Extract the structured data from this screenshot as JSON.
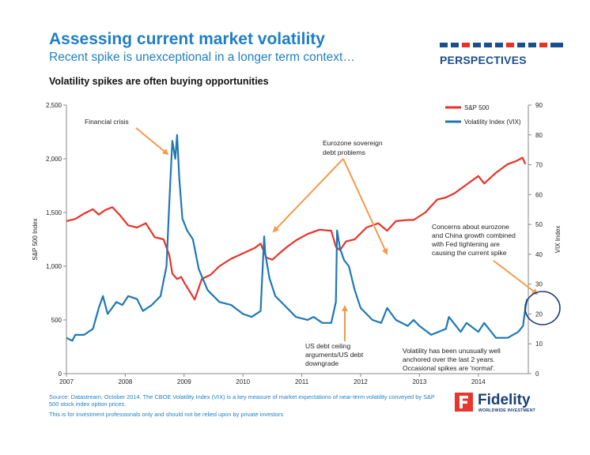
{
  "header": {
    "title": "Assessing current market volatility",
    "subtitle": "Recent spike is unexceptional in a longer term context…",
    "tag": "PERSPECTIVES",
    "chart_heading": "Volatility spikes are often buying opportunities"
  },
  "footer": {
    "source": "Source: Datastream, October 2014. The CBOE Volatility Index (VIX) is a key measure of market expectations of near-term volatility conveyed by S&P 500 stock index option prices.",
    "disclaimer": "This is for investment professionals only and should not be relied upon by private investors",
    "logo_name": "Fidelity",
    "logo_tag": "WORLDWIDE INVESTMENT"
  },
  "colors": {
    "sp500": "#e63329",
    "vix": "#1f78b4",
    "accent": "#1f7fc4",
    "arrow": "#f29b4c",
    "brand_red": "#e8352e",
    "brand_navy": "#1b3f73"
  },
  "chart_data": {
    "type": "line",
    "title": "Volatility spikes are often buying opportunities",
    "ylabel": "S&P 500 Index",
    "y2label": "VIX Index",
    "xlim": [
      2007.0,
      2014.85
    ],
    "ylim": [
      0,
      2500
    ],
    "y2lim": [
      0,
      90
    ],
    "x_ticks": [
      2007,
      2008,
      2009,
      2010,
      2011,
      2012,
      2013,
      2014
    ],
    "y_ticks": [
      0,
      500,
      1000,
      1500,
      2000,
      2500
    ],
    "y_tick_labels": [
      "0",
      "500",
      "1,000",
      "1,500",
      "2,000",
      "2,500"
    ],
    "y2_ticks": [
      0,
      10,
      20,
      30,
      40,
      50,
      60,
      70,
      80,
      90
    ],
    "legend": "top-right",
    "grid": false,
    "series": [
      {
        "name": "S&P 500",
        "axis": "left",
        "x": [
          2007.0,
          2007.15,
          2007.3,
          2007.45,
          2007.55,
          2007.65,
          2007.78,
          2007.9,
          2008.05,
          2008.2,
          2008.35,
          2008.5,
          2008.65,
          2008.75,
          2008.8,
          2008.88,
          2008.95,
          2009.0,
          2009.1,
          2009.18,
          2009.3,
          2009.45,
          2009.6,
          2009.8,
          2010.0,
          2010.2,
          2010.3,
          2010.4,
          2010.5,
          2010.6,
          2010.75,
          2010.9,
          2011.1,
          2011.3,
          2011.5,
          2011.58,
          2011.65,
          2011.75,
          2011.9,
          2012.1,
          2012.3,
          2012.45,
          2012.6,
          2012.8,
          2012.9,
          2013.1,
          2013.3,
          2013.45,
          2013.6,
          2013.8,
          2014.0,
          2014.1,
          2014.3,
          2014.5,
          2014.65,
          2014.75,
          2014.8
        ],
        "y": [
          1420,
          1440,
          1490,
          1530,
          1480,
          1520,
          1550,
          1480,
          1380,
          1360,
          1400,
          1270,
          1250,
          1100,
          930,
          880,
          900,
          850,
          760,
          690,
          880,
          920,
          1000,
          1070,
          1120,
          1170,
          1210,
          1080,
          1060,
          1110,
          1180,
          1240,
          1300,
          1340,
          1330,
          1180,
          1150,
          1230,
          1250,
          1360,
          1400,
          1330,
          1420,
          1430,
          1430,
          1500,
          1620,
          1640,
          1680,
          1760,
          1840,
          1770,
          1870,
          1950,
          1980,
          2010,
          1950
        ]
      },
      {
        "name": "Volatility Index (VIX)",
        "axis": "right",
        "x": [
          2007.0,
          2007.1,
          2007.15,
          2007.3,
          2007.45,
          2007.55,
          2007.62,
          2007.7,
          2007.85,
          2007.95,
          2008.05,
          2008.2,
          2008.3,
          2008.45,
          2008.6,
          2008.7,
          2008.76,
          2008.8,
          2008.85,
          2008.88,
          2008.92,
          2008.97,
          2009.05,
          2009.15,
          2009.25,
          2009.4,
          2009.6,
          2009.8,
          2010.0,
          2010.15,
          2010.3,
          2010.36,
          2010.38,
          2010.45,
          2010.55,
          2010.7,
          2010.9,
          2011.1,
          2011.2,
          2011.35,
          2011.5,
          2011.58,
          2011.6,
          2011.65,
          2011.72,
          2011.8,
          2011.9,
          2012.0,
          2012.2,
          2012.35,
          2012.45,
          2012.6,
          2012.8,
          2012.9,
          2013.0,
          2013.2,
          2013.45,
          2013.5,
          2013.7,
          2013.8,
          2014.0,
          2014.1,
          2014.3,
          2014.5,
          2014.68,
          2014.76,
          2014.8,
          2014.83
        ],
        "y": [
          12,
          11,
          13,
          13,
          15,
          22,
          26,
          20,
          24,
          23,
          26,
          25,
          21,
          23,
          26,
          36,
          62,
          78,
          72,
          80,
          65,
          52,
          48,
          45,
          35,
          28,
          24,
          23,
          20,
          19,
          21,
          46,
          40,
          32,
          26,
          23,
          19,
          18,
          19,
          17,
          17,
          24,
          48,
          42,
          38,
          36,
          28,
          22,
          18,
          17,
          22,
          18,
          16,
          18,
          16,
          13,
          15,
          19,
          14,
          17,
          14,
          17,
          12,
          12,
          14,
          16,
          22,
          25
        ]
      }
    ],
    "annotations": [
      "Financial crisis",
      "Eurozone sovereign debt problems",
      "US debt ceiling arguments/US debt downgrade",
      "Concerns about eurozone and China growth combined with Fed tightening are causing the current spike",
      "Volatility has been unusually well anchored over the last 2 years. Occasional spikes are 'normal'."
    ]
  }
}
